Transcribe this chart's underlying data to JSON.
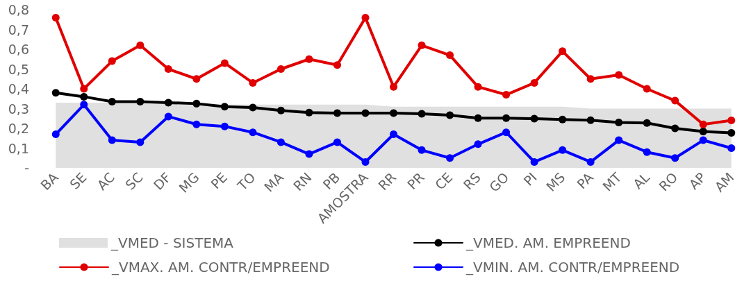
{
  "chart_data": {
    "type": "line",
    "categories": [
      "BA",
      "SE",
      "AC",
      "SC",
      "DF",
      "MG",
      "PE",
      "TO",
      "MA",
      "RN",
      "PB",
      "AMOSTRA",
      "RR",
      "PR",
      "CE",
      "RS",
      "GO",
      "PI",
      "MS",
      "PA",
      "MT",
      "AL",
      "RO",
      "AP",
      "AM"
    ],
    "series": [
      {
        "name": "_VMED - SISTEMA",
        "type": "area",
        "marker": "none",
        "color": "#e0e0e0",
        "values": [
          0.33,
          0.33,
          0.33,
          0.33,
          0.33,
          0.33,
          0.32,
          0.32,
          0.32,
          0.32,
          0.32,
          0.32,
          0.31,
          0.31,
          0.31,
          0.31,
          0.31,
          0.31,
          0.31,
          0.3,
          0.3,
          0.3,
          0.3,
          0.3,
          0.3
        ]
      },
      {
        "name": "_VMED. AM. EMPREEND",
        "color": "#000000",
        "values": [
          0.38,
          0.36,
          0.335,
          0.335,
          0.33,
          0.325,
          0.31,
          0.305,
          0.29,
          0.28,
          0.277,
          0.277,
          0.277,
          0.274,
          0.267,
          0.252,
          0.252,
          0.249,
          0.245,
          0.241,
          0.23,
          0.227,
          0.2,
          0.184,
          0.177
        ]
      },
      {
        "name": "_VMAX. AM. CONTR/EMPREEND",
        "color": "#e00000",
        "values": [
          0.76,
          0.4,
          0.54,
          0.62,
          0.5,
          0.45,
          0.53,
          0.43,
          0.5,
          0.55,
          0.52,
          0.76,
          0.41,
          0.62,
          0.57,
          0.41,
          0.37,
          0.43,
          0.59,
          0.45,
          0.47,
          0.4,
          0.34,
          0.22,
          0.24
        ]
      },
      {
        "name": "_VMIN. AM. CONTR/EMPREEND",
        "color": "#0000ff",
        "values": [
          0.17,
          0.32,
          0.14,
          0.13,
          0.26,
          0.22,
          0.21,
          0.18,
          0.13,
          0.07,
          0.13,
          0.03,
          0.17,
          0.09,
          0.05,
          0.12,
          0.18,
          0.03,
          0.09,
          0.03,
          0.14,
          0.08,
          0.05,
          0.14,
          0.1
        ]
      }
    ],
    "ylim": [
      0,
      0.8
    ],
    "yticks": [
      {
        "value": 0,
        "label": "-"
      },
      {
        "value": 0.1,
        "label": "0,1"
      },
      {
        "value": 0.2,
        "label": "0,2"
      },
      {
        "value": 0.3,
        "label": "0,3"
      },
      {
        "value": 0.4,
        "label": "0,4"
      },
      {
        "value": 0.5,
        "label": "0,5"
      },
      {
        "value": 0.6,
        "label": "0,6"
      },
      {
        "value": 0.7,
        "label": "0,7"
      },
      {
        "value": 0.8,
        "label": "0,8"
      }
    ],
    "legend": "bottom",
    "marker": "circle",
    "line_style": "solid"
  }
}
